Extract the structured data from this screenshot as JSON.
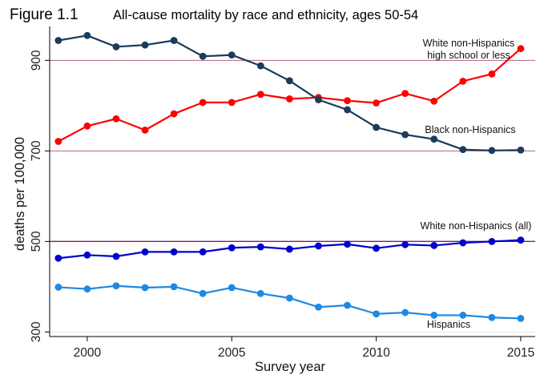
{
  "chart_data": {
    "type": "line",
    "title": "Figure 1.1",
    "subtitle": "All-cause mortality by race and ethnicity, ages 50-54",
    "xlabel": "Survey year",
    "ylabel": "deaths per 100,000",
    "x": [
      1999,
      2000,
      2001,
      2002,
      2003,
      2004,
      2005,
      2006,
      2007,
      2008,
      2009,
      2010,
      2011,
      2012,
      2013,
      2014,
      2015
    ],
    "xlim": [
      1998.7,
      2015.5
    ],
    "ylim": [
      290,
      975
    ],
    "xticks": [
      2000,
      2005,
      2010,
      2015
    ],
    "yticks": [
      300,
      500,
      700,
      900
    ],
    "reference_lines": [
      500,
      700,
      900
    ],
    "grid": false,
    "legend": "none",
    "series": [
      {
        "name": "White non-Hispanics high school or less",
        "label_lines": [
          "White non-Hispanics",
          "high school or less"
        ],
        "color": "#ff0000",
        "values": [
          721,
          755,
          771,
          746,
          782,
          807,
          807,
          825,
          815,
          818,
          811,
          806,
          827,
          810,
          854,
          870,
          926
        ]
      },
      {
        "name": "Black non-Hispanics",
        "label_lines": [
          "Black non-Hispanics"
        ],
        "color": "#1a3b5c",
        "values": [
          944,
          955,
          930,
          934,
          944,
          909,
          912,
          888,
          855,
          813,
          791,
          752,
          736,
          726,
          703,
          701,
          702
        ]
      },
      {
        "name": "White non-Hispanics (all)",
        "label_lines": [
          "White non-Hispanics (all)"
        ],
        "color": "#0000cd",
        "values": [
          463,
          470,
          467,
          477,
          477,
          477,
          486,
          488,
          483,
          490,
          494,
          485,
          493,
          491,
          497,
          500,
          503
        ]
      },
      {
        "name": "Hispanics",
        "label_lines": [
          "Hispanics"
        ],
        "color": "#1e88e5",
        "values": [
          399,
          395,
          402,
          398,
          400,
          385,
          398,
          385,
          375,
          355,
          359,
          340,
          343,
          337,
          337,
          332,
          330
        ]
      }
    ]
  }
}
